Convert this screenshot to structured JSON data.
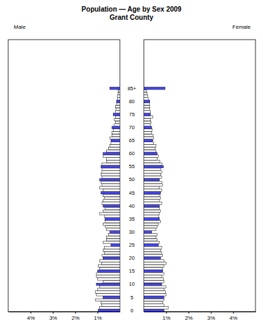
{
  "chart_data": {
    "type": "bar",
    "orientation": "horizontal",
    "title": "Population — Age by Sex 2009",
    "subtitle": "Grant County",
    "categories": [
      "0",
      null,
      null,
      null,
      null,
      "5",
      null,
      null,
      null,
      null,
      "10",
      null,
      null,
      null,
      null,
      "15",
      null,
      null,
      null,
      null,
      "20",
      null,
      null,
      null,
      null,
      "25",
      null,
      null,
      null,
      null,
      "30",
      null,
      null,
      null,
      null,
      "35",
      null,
      null,
      null,
      null,
      "40",
      null,
      null,
      null,
      null,
      "45",
      null,
      null,
      null,
      null,
      "50",
      null,
      null,
      null,
      null,
      "55",
      null,
      null,
      null,
      null,
      "60",
      null,
      null,
      null,
      null,
      "65",
      null,
      null,
      null,
      null,
      "70",
      null,
      null,
      null,
      null,
      "75",
      null,
      null,
      null,
      null,
      "80",
      null,
      null,
      null,
      null,
      "85+"
    ],
    "xlim": [
      0,
      5
    ],
    "xticks": [
      {
        "value": 1,
        "label": "1%"
      },
      {
        "value": 2,
        "label": "2%"
      },
      {
        "value": 3,
        "label": "3%"
      },
      {
        "value": 4,
        "label": "4%"
      }
    ],
    "series": [
      {
        "name": "Male",
        "values": [
          0.97,
          0.9,
          0.82,
          0.85,
          1.1,
          0.75,
          1.05,
          1.1,
          1.0,
          0.9,
          1.05,
          0.75,
          1.0,
          1.05,
          1.05,
          1.0,
          0.9,
          0.97,
          0.82,
          0.9,
          0.76,
          0.8,
          0.7,
          0.75,
          0.7,
          0.4,
          0.75,
          0.6,
          0.6,
          0.5,
          0.45,
          0.6,
          0.65,
          0.75,
          0.67,
          0.67,
          0.7,
          0.9,
          0.75,
          0.67,
          0.75,
          0.8,
          0.75,
          0.7,
          0.75,
          0.85,
          0.75,
          0.9,
          0.8,
          0.85,
          0.9,
          0.8,
          0.85,
          0.8,
          0.8,
          0.85,
          0.8,
          0.6,
          0.6,
          0.75,
          0.75,
          0.6,
          0.5,
          0.45,
          0.4,
          0.4,
          0.45,
          0.35,
          0.35,
          0.3,
          0.35,
          0.25,
          0.2,
          0.25,
          0.2,
          0.3,
          0.2,
          0.18,
          0.2,
          0.15,
          0.15,
          0.1,
          0.12,
          0.07,
          0.07,
          0.45
        ],
        "colors": [
          "#4646ff",
          "#ffffff",
          "#ffffff",
          "#ffffff",
          "#ffffff",
          "#4646ff",
          "#ffffff",
          "#ffffff",
          "#ffffff",
          "#ffffff",
          "#4646ff",
          "#ffffff",
          "#ffffff",
          "#ffffff",
          "#ffffff",
          "#4646ff",
          "#ffffff",
          "#ffffff",
          "#ffffff",
          "#ffffff",
          "#4646ff",
          "#ffffff",
          "#ffffff",
          "#ffffff",
          "#ffffff",
          "#4646ff",
          "#ffffff",
          "#ffffff",
          "#ffffff",
          "#ffffff",
          "#4646ff",
          "#ffffff",
          "#ffffff",
          "#ffffff",
          "#ffffff",
          "#4646ff",
          "#ffffff",
          "#ffffff",
          "#ffffff",
          "#ffffff",
          "#4646ff",
          "#ffffff",
          "#ffffff",
          "#ffffff",
          "#ffffff",
          "#4646ff",
          "#ffffff",
          "#ffffff",
          "#ffffff",
          "#ffffff",
          "#4646ff",
          "#ffffff",
          "#ffffff",
          "#ffffff",
          "#ffffff",
          "#4646ff",
          "#ffffff",
          "#ffffff",
          "#ffffff",
          "#ffffff",
          "#4646ff",
          "#ffffff",
          "#ffffff",
          "#ffffff",
          "#ffffff",
          "#4646ff",
          "#ffffff",
          "#ffffff",
          "#ffffff",
          "#ffffff",
          "#4646ff",
          "#ffffff",
          "#ffffff",
          "#ffffff",
          "#ffffff",
          "#4646ff",
          "#ffffff",
          "#ffffff",
          "#ffffff",
          "#ffffff",
          "#4646ff",
          "#ffffff",
          "#ffffff",
          "#ffffff",
          "#ffffff",
          "#4646ff"
        ]
      },
      {
        "name": "Female",
        "values": [
          0.9,
          1.1,
          0.9,
          0.85,
          0.9,
          0.9,
          1.0,
          0.97,
          0.9,
          1.0,
          0.8,
          0.9,
          0.88,
          0.8,
          0.9,
          0.85,
          0.85,
          0.9,
          1.0,
          0.9,
          0.75,
          0.85,
          0.8,
          0.75,
          0.8,
          0.65,
          0.7,
          0.6,
          0.55,
          0.6,
          0.35,
          0.55,
          0.6,
          0.65,
          0.75,
          0.7,
          0.65,
          0.7,
          0.75,
          0.7,
          0.7,
          0.8,
          0.7,
          0.75,
          0.72,
          0.75,
          0.8,
          0.7,
          0.85,
          0.82,
          0.7,
          0.8,
          0.75,
          0.82,
          0.75,
          0.88,
          0.82,
          0.72,
          0.6,
          0.65,
          0.6,
          0.55,
          0.5,
          0.55,
          0.45,
          0.4,
          0.45,
          0.42,
          0.35,
          0.37,
          0.35,
          0.3,
          0.33,
          0.3,
          0.4,
          0.3,
          0.3,
          0.27,
          0.27,
          0.25,
          0.27,
          0.2,
          0.18,
          0.15,
          0.12,
          0.95
        ],
        "colors": [
          "#4646ff",
          "#ffffff",
          "#ffffff",
          "#ffffff",
          "#ffffff",
          "#4646ff",
          "#ffffff",
          "#ffffff",
          "#ffffff",
          "#ffffff",
          "#4646ff",
          "#ffffff",
          "#ffffff",
          "#ffffff",
          "#ffffff",
          "#4646ff",
          "#ffffff",
          "#ffffff",
          "#ffffff",
          "#ffffff",
          "#4646ff",
          "#ffffff",
          "#ffffff",
          "#ffffff",
          "#ffffff",
          "#4646ff",
          "#ffffff",
          "#ffffff",
          "#ffffff",
          "#ffffff",
          "#4646ff",
          "#ffffff",
          "#ffffff",
          "#ffffff",
          "#ffffff",
          "#4646ff",
          "#ffffff",
          "#ffffff",
          "#ffffff",
          "#ffffff",
          "#4646ff",
          "#ffffff",
          "#ffffff",
          "#ffffff",
          "#ffffff",
          "#4646ff",
          "#ffffff",
          "#ffffff",
          "#ffffff",
          "#ffffff",
          "#4646ff",
          "#ffffff",
          "#ffffff",
          "#ffffff",
          "#ffffff",
          "#4646ff",
          "#ffffff",
          "#ffffff",
          "#ffffff",
          "#ffffff",
          "#4646ff",
          "#ffffff",
          "#ffffff",
          "#ffffff",
          "#ffffff",
          "#4646ff",
          "#ffffff",
          "#ffffff",
          "#ffffff",
          "#ffffff",
          "#4646ff",
          "#ffffff",
          "#ffffff",
          "#ffffff",
          "#ffffff",
          "#4646ff",
          "#ffffff",
          "#ffffff",
          "#ffffff",
          "#ffffff",
          "#4646ff",
          "#ffffff",
          "#ffffff",
          "#ffffff",
          "#ffffff",
          "#4646ff"
        ]
      }
    ]
  }
}
